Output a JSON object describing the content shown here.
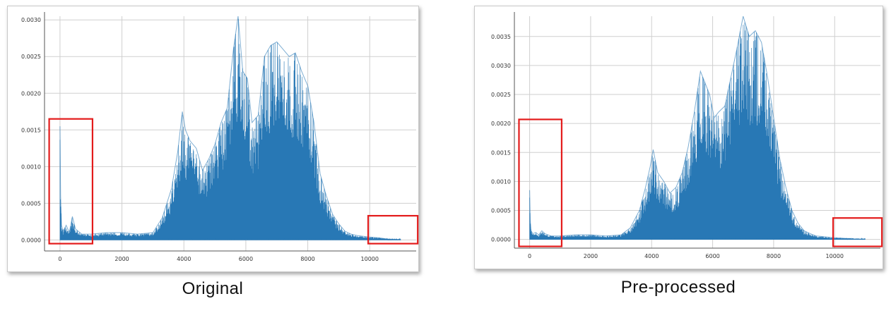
{
  "captions": {
    "original": "Original",
    "preprocessed": "Pre-processed"
  },
  "colors": {
    "series": "#2878b5",
    "highlight": "#e31b1b",
    "grid": "#cfcfcf"
  },
  "chart_data": [
    {
      "type": "area",
      "caption": "Original",
      "xlim": [
        -500,
        11500
      ],
      "ylim": [
        -0.00015,
        0.00305
      ],
      "xticks": [
        0,
        2000,
        4000,
        6000,
        8000,
        10000
      ],
      "xtick_labels": [
        "0",
        "2000",
        "4000",
        "6000",
        "8000",
        "10000"
      ],
      "yticks": [
        0,
        0.0005,
        0.001,
        0.0015,
        0.002,
        0.0025,
        0.003
      ],
      "ytick_labels": [
        "0.0000",
        "0.0005",
        "0.0010",
        "0.0015",
        "0.0020",
        "0.0025",
        "0.0030"
      ],
      "grid": true,
      "series": [
        {
          "x": [
            0,
            20,
            50,
            100,
            200,
            300,
            400,
            500,
            700,
            1000,
            1500,
            2000,
            2500,
            3000,
            3300,
            3600,
            3800,
            3950,
            4050,
            4200,
            4400,
            4600,
            4800,
            5000,
            5200,
            5400,
            5600,
            5750,
            5900,
            6050,
            6200,
            6400,
            6600,
            6800,
            7000,
            7200,
            7400,
            7600,
            7800,
            8000,
            8200,
            8400,
            8600,
            8800,
            9000,
            9200,
            9400,
            9600,
            9800,
            10000,
            10300,
            10600,
            11000
          ],
          "y": [
            0.00155,
            0.0006,
            0.0002,
            0.00012,
            0.0002,
            0.0001,
            0.00032,
            0.00015,
            8e-05,
            8e-05,
            0.0001,
            0.0001,
            8e-05,
            0.0001,
            0.0003,
            0.0007,
            0.0012,
            0.00175,
            0.0015,
            0.00135,
            0.00125,
            0.00095,
            0.0011,
            0.0013,
            0.0016,
            0.0018,
            0.0026,
            0.00305,
            0.0023,
            0.0022,
            0.0016,
            0.0017,
            0.0025,
            0.00265,
            0.0027,
            0.0026,
            0.0025,
            0.00255,
            0.0023,
            0.0021,
            0.0016,
            0.0009,
            0.0006,
            0.00035,
            0.00022,
            0.00012,
            8e-05,
            6e-05,
            5e-05,
            4e-05,
            3e-05,
            1e-05,
            5e-06
          ]
        }
      ],
      "annotations": [
        {
          "shape": "rectangle",
          "x_range": [
            -350,
            1050
          ],
          "y_range": [
            -5e-05,
            0.00165
          ]
        },
        {
          "shape": "rectangle",
          "x_range": [
            9950,
            11550
          ],
          "y_range": [
            -5e-05,
            0.00033
          ]
        }
      ]
    },
    {
      "type": "area",
      "caption": "Pre-processed",
      "xlim": [
        -500,
        11500
      ],
      "ylim": [
        -0.00015,
        0.00385
      ],
      "xticks": [
        0,
        2000,
        4000,
        6000,
        8000,
        10000
      ],
      "xtick_labels": [
        "0",
        "2000",
        "4000",
        "6000",
        "8000",
        "10000"
      ],
      "yticks": [
        0,
        0.0005,
        0.001,
        0.0015,
        0.002,
        0.0025,
        0.003,
        0.0035
      ],
      "ytick_labels": [
        "0.0000",
        "0.0005",
        "0.0010",
        "0.0015",
        "0.0020",
        "0.0025",
        "0.0030",
        "0.0035"
      ],
      "grid": true,
      "series": [
        {
          "x": [
            0,
            20,
            50,
            100,
            200,
            300,
            400,
            500,
            700,
            1000,
            1500,
            2000,
            2500,
            3000,
            3300,
            3600,
            3800,
            3950,
            4050,
            4200,
            4400,
            4600,
            4800,
            5000,
            5200,
            5400,
            5600,
            5750,
            5900,
            6050,
            6200,
            6400,
            6600,
            6800,
            7000,
            7200,
            7400,
            7600,
            7800,
            8000,
            8200,
            8400,
            8600,
            8800,
            9000,
            9200,
            9400,
            9600,
            9800,
            10000,
            10300,
            10600,
            11000
          ],
          "y": [
            0.00085,
            0.00032,
            0.00015,
            0.0001,
            0.00012,
            8e-05,
            0.00015,
            0.0001,
            6e-05,
            6e-05,
            8e-05,
            8e-05,
            6e-05,
            8e-05,
            0.0002,
            0.0005,
            0.0009,
            0.00125,
            0.00155,
            0.00115,
            0.001,
            0.0008,
            0.0009,
            0.00115,
            0.0016,
            0.0022,
            0.0029,
            0.0027,
            0.0025,
            0.0021,
            0.0022,
            0.0023,
            0.0028,
            0.0033,
            0.00385,
            0.0035,
            0.0036,
            0.0034,
            0.0028,
            0.0021,
            0.0014,
            0.0009,
            0.0005,
            0.00028,
            0.00015,
            0.0001,
            6e-05,
            5e-05,
            4e-05,
            3e-05,
            2e-05,
            1e-05,
            5e-06
          ]
        }
      ],
      "annotations": [
        {
          "shape": "rectangle",
          "x_range": [
            -350,
            1050
          ],
          "y_range": [
            -0.00012,
            0.00207
          ]
        },
        {
          "shape": "rectangle",
          "x_range": [
            9950,
            11550
          ],
          "y_range": [
            -0.00012,
            0.00037
          ]
        }
      ]
    }
  ]
}
